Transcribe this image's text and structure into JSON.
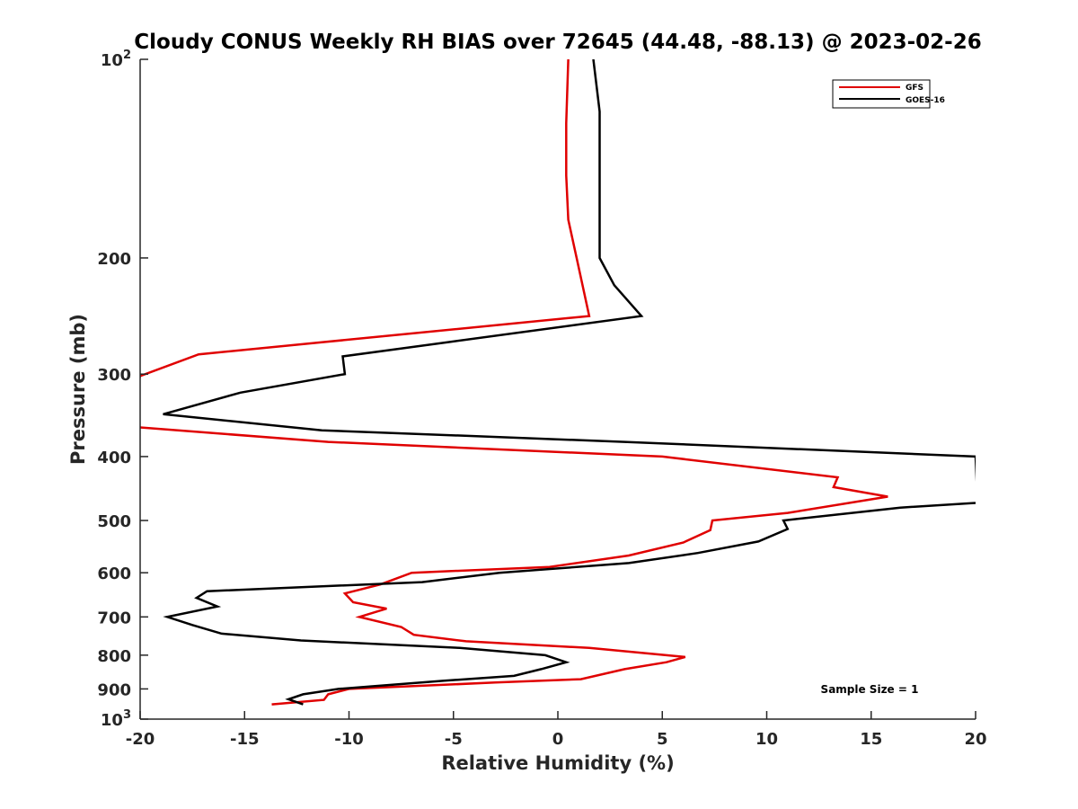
{
  "chart_data": {
    "type": "line",
    "title": "Cloudy CONUS Weekly RH BIAS over 72645 (44.48, -88.13) @ 2023-02-26",
    "xlabel": "Relative Humidity (%)",
    "ylabel": "Pressure (mb)",
    "xlim": [
      -20,
      20
    ],
    "ylim": [
      100,
      1000
    ],
    "y_scale": "log",
    "y_reversed": true,
    "grid": false,
    "legend_position": "top-right",
    "x_ticks": [
      -20,
      -15,
      -10,
      -5,
      0,
      5,
      10,
      15,
      20
    ],
    "x_tick_labels": [
      "-20",
      "-15",
      "-10",
      "-5",
      "0",
      "5",
      "10",
      "15",
      "20"
    ],
    "y_ticks": [
      100,
      200,
      300,
      400,
      500,
      600,
      700,
      800,
      900,
      1000
    ],
    "y_tick_labels": [
      "10^2",
      "200",
      "300",
      "400",
      "500",
      "600",
      "700",
      "800",
      "900",
      "10^3"
    ],
    "annotation": "Sample Size = 1",
    "series": [
      {
        "name": "GFS",
        "color": "#e00000",
        "points": [
          [
            0.5,
            100
          ],
          [
            0.4,
            125
          ],
          [
            0.4,
            150
          ],
          [
            0.5,
            175
          ],
          [
            0.9,
            200
          ],
          [
            1.5,
            245
          ],
          [
            -17.2,
            280
          ],
          [
            -20,
            302
          ],
          [
            -20.7,
            360
          ],
          [
            -11,
            380
          ],
          [
            5,
            400
          ],
          [
            13.4,
            430
          ],
          [
            13.2,
            445
          ],
          [
            15.8,
            460
          ],
          [
            11,
            487
          ],
          [
            7.4,
            500
          ],
          [
            7.3,
            517
          ],
          [
            6,
            540
          ],
          [
            3.4,
            565
          ],
          [
            -0.4,
            588
          ],
          [
            -7,
            600
          ],
          [
            -8.5,
            625
          ],
          [
            -10.2,
            645
          ],
          [
            -9.8,
            665
          ],
          [
            -8.2,
            680
          ],
          [
            -9.5,
            700
          ],
          [
            -7.5,
            725
          ],
          [
            -6.9,
            745
          ],
          [
            -4.4,
            762
          ],
          [
            1.5,
            780
          ],
          [
            6.1,
            805
          ],
          [
            5.2,
            820
          ],
          [
            3.2,
            840
          ],
          [
            1.1,
            870
          ],
          [
            -3,
            880
          ],
          [
            -10,
            900
          ],
          [
            -11,
            917
          ],
          [
            -11.2,
            935
          ],
          [
            -13.7,
            950
          ]
        ]
      },
      {
        "name": "GOES-16",
        "color": "#000000",
        "points": [
          [
            1.7,
            100
          ],
          [
            2,
            120
          ],
          [
            2,
            150
          ],
          [
            2,
            175
          ],
          [
            2,
            200
          ],
          [
            2.7,
            220
          ],
          [
            4,
            245
          ],
          [
            -10.3,
            282
          ],
          [
            -10.2,
            300
          ],
          [
            -15.2,
            320
          ],
          [
            -18.9,
            345
          ],
          [
            -11.3,
            365
          ],
          [
            3.2,
            380
          ],
          [
            20,
            400
          ],
          [
            20.1,
            470
          ],
          [
            16.4,
            478
          ],
          [
            10.8,
            500
          ],
          [
            11,
            515
          ],
          [
            9.6,
            538
          ],
          [
            6.7,
            560
          ],
          [
            3.4,
            580
          ],
          [
            -2.8,
            600
          ],
          [
            -6.5,
            620
          ],
          [
            -16.8,
            640
          ],
          [
            -17.3,
            655
          ],
          [
            -16.3,
            675
          ],
          [
            -18.7,
            700
          ],
          [
            -17.5,
            720
          ],
          [
            -16.1,
            742
          ],
          [
            -12.3,
            760
          ],
          [
            -4.7,
            780
          ],
          [
            -0.6,
            800
          ],
          [
            0.4,
            820
          ],
          [
            -0.8,
            840
          ],
          [
            -2.1,
            860
          ],
          [
            -5.5,
            875
          ],
          [
            -10.5,
            900
          ],
          [
            -12.2,
            917
          ],
          [
            -12.9,
            933
          ],
          [
            -12.2,
            950
          ]
        ]
      }
    ]
  }
}
